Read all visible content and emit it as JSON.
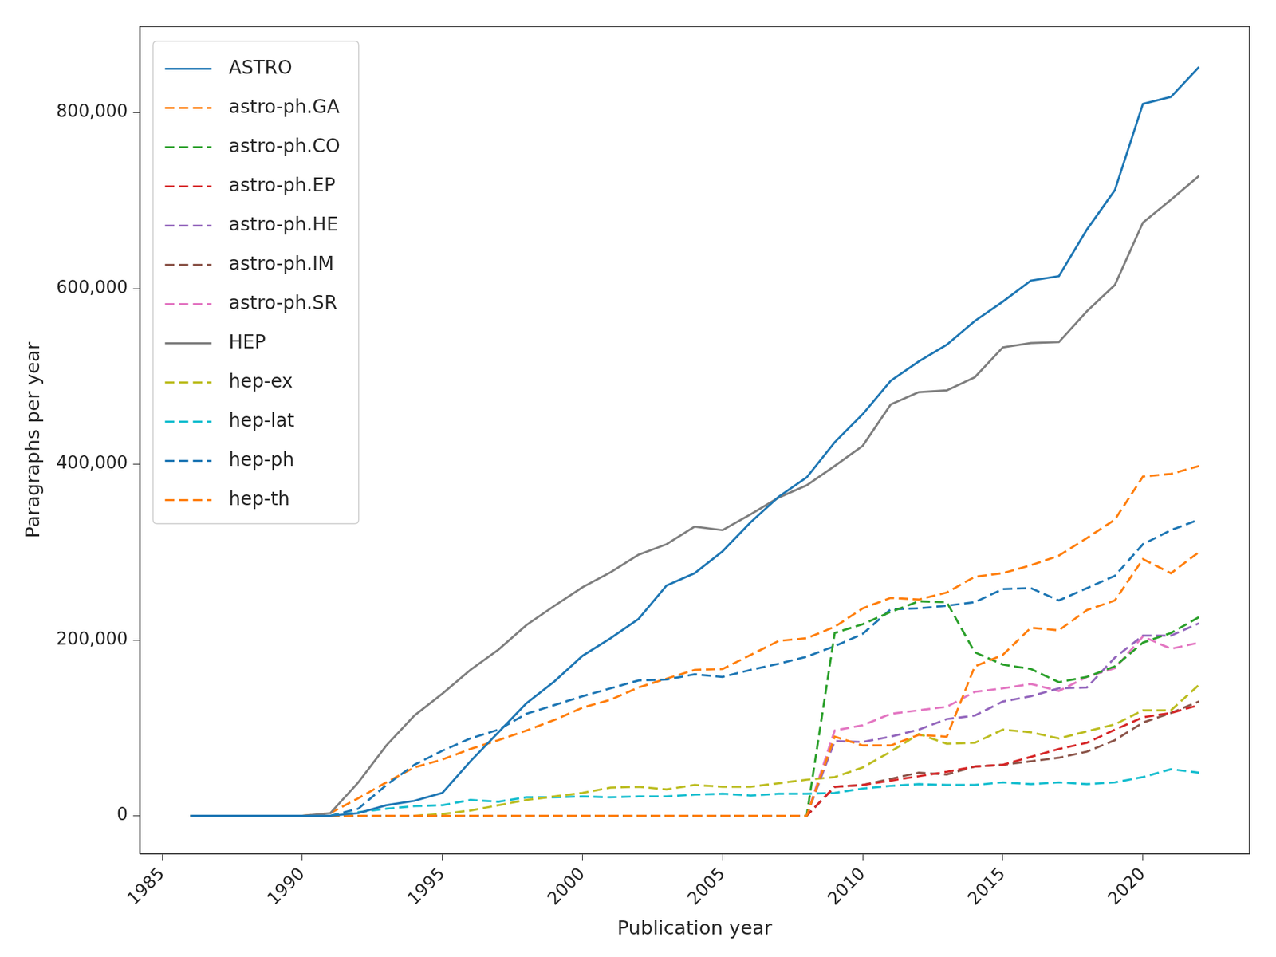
{
  "chart_data": {
    "type": "line",
    "x_label": "Publication year",
    "y_label": "Paragraphs per year",
    "x": [
      1986,
      1987,
      1988,
      1989,
      1990,
      1991,
      1992,
      1993,
      1994,
      1995,
      1996,
      1997,
      1998,
      1999,
      2000,
      2001,
      2002,
      2003,
      2004,
      2005,
      2006,
      2007,
      2008,
      2009,
      2010,
      2011,
      2012,
      2013,
      2014,
      2015,
      2016,
      2017,
      2018,
      2019,
      2020,
      2021,
      2022
    ],
    "xlim": [
      1984.2,
      2023.8
    ],
    "xticks": [
      1985,
      1990,
      1995,
      2000,
      2005,
      2010,
      2015,
      2020
    ],
    "ylim": [
      -43000,
      898000
    ],
    "yticks": [
      0,
      {
        "value": 200000,
        "label": "200,000"
      },
      {
        "value": 400000,
        "label": "400,000"
      },
      {
        "value": 600000,
        "label": "600,000"
      },
      {
        "value": 800000,
        "label": "800,000"
      }
    ],
    "grid": false,
    "legend": "upper left",
    "series": [
      {
        "name": "ASTRO",
        "color": "#1f77b4",
        "line_style": "solid",
        "values": [
          0,
          0,
          0,
          0,
          0,
          0,
          3000,
          12000,
          17000,
          26000,
          62000,
          95000,
          128000,
          153000,
          182000,
          202000,
          224000,
          262000,
          276000,
          301000,
          334000,
          363000,
          385000,
          425000,
          457000,
          495000,
          517000,
          536000,
          563000,
          585000,
          609000,
          614000,
          667000,
          712000,
          810000,
          818000,
          852000
        ]
      },
      {
        "name": "astro-ph.GA",
        "color": "#ff7f0e",
        "line_style": "dashed",
        "values": [
          0,
          0,
          0,
          0,
          0,
          0,
          0,
          0,
          0,
          0,
          0,
          0,
          0,
          0,
          0,
          0,
          0,
          0,
          0,
          0,
          0,
          0,
          0,
          90000,
          80000,
          80000,
          92000,
          90000,
          170000,
          183000,
          214000,
          211000,
          234000,
          245000,
          292000,
          276000,
          300000
        ]
      },
      {
        "name": "astro-ph.CO",
        "color": "#2ca02c",
        "line_style": "dashed",
        "values": [
          0,
          0,
          0,
          0,
          0,
          0,
          0,
          0,
          0,
          0,
          0,
          0,
          0,
          0,
          0,
          0,
          0,
          0,
          0,
          0,
          0,
          0,
          0,
          208000,
          218000,
          232000,
          244000,
          243000,
          186000,
          172000,
          167000,
          152000,
          158000,
          170000,
          197000,
          208000,
          226000
        ]
      },
      {
        "name": "astro-ph.EP",
        "color": "#d62728",
        "line_style": "dashed",
        "values": [
          0,
          0,
          0,
          0,
          0,
          0,
          0,
          0,
          0,
          0,
          0,
          0,
          0,
          0,
          0,
          0,
          0,
          0,
          0,
          0,
          0,
          0,
          0,
          33000,
          35000,
          40000,
          45000,
          50000,
          56000,
          58000,
          67000,
          76000,
          83000,
          98000,
          112000,
          117000,
          126000
        ]
      },
      {
        "name": "astro-ph.HE",
        "color": "#9467bd",
        "line_style": "dashed",
        "values": [
          0,
          0,
          0,
          0,
          0,
          0,
          0,
          0,
          0,
          0,
          0,
          0,
          0,
          0,
          0,
          0,
          0,
          0,
          0,
          0,
          0,
          0,
          0,
          85000,
          84000,
          90000,
          98000,
          110000,
          114000,
          130000,
          136000,
          145000,
          146000,
          180000,
          205000,
          205000,
          219000
        ]
      },
      {
        "name": "astro-ph.IM",
        "color": "#8c564b",
        "line_style": "dashed",
        "values": [
          0,
          0,
          0,
          0,
          0,
          0,
          0,
          0,
          0,
          0,
          0,
          0,
          0,
          0,
          0,
          0,
          0,
          0,
          0,
          0,
          0,
          0,
          0,
          33000,
          35000,
          42000,
          49000,
          47000,
          56000,
          58000,
          62000,
          66000,
          73000,
          86000,
          106000,
          117000,
          130000
        ]
      },
      {
        "name": "astro-ph.SR",
        "color": "#e377c2",
        "line_style": "dashed",
        "values": [
          0,
          0,
          0,
          0,
          0,
          0,
          0,
          0,
          0,
          0,
          0,
          0,
          0,
          0,
          0,
          0,
          0,
          0,
          0,
          0,
          0,
          0,
          0,
          97000,
          103000,
          116000,
          120000,
          124000,
          141000,
          145000,
          150000,
          142000,
          158000,
          168000,
          204000,
          190000,
          197000
        ]
      },
      {
        "name": "HEP",
        "color": "#7f7f7f",
        "line_style": "solid",
        "values": [
          0,
          0,
          0,
          0,
          0,
          3000,
          38000,
          80000,
          114000,
          139000,
          166000,
          189000,
          217000,
          239000,
          260000,
          277000,
          297000,
          309000,
          329000,
          325000,
          343000,
          362000,
          376000,
          398000,
          421000,
          468000,
          482000,
          484000,
          499000,
          533000,
          538000,
          539000,
          574000,
          604000,
          675000,
          701000,
          728000
        ]
      },
      {
        "name": "hep-ex",
        "color": "#bcbd22",
        "line_style": "dashed",
        "values": [
          0,
          0,
          0,
          0,
          0,
          0,
          0,
          0,
          0,
          2000,
          6000,
          12000,
          18000,
          22000,
          26000,
          32000,
          33000,
          30000,
          35000,
          33000,
          33000,
          37000,
          41000,
          44000,
          55000,
          73000,
          93000,
          82000,
          83000,
          98000,
          95000,
          88000,
          96000,
          104000,
          120000,
          120000,
          149000
        ]
      },
      {
        "name": "hep-lat",
        "color": "#17becf",
        "line_style": "dashed",
        "values": [
          0,
          0,
          0,
          0,
          0,
          0,
          4000,
          8000,
          11000,
          12000,
          18000,
          16000,
          21000,
          21000,
          22000,
          21000,
          22000,
          22000,
          24000,
          25000,
          23000,
          25000,
          25000,
          26000,
          31000,
          34000,
          36000,
          35000,
          35000,
          38000,
          36000,
          38000,
          36000,
          38000,
          44000,
          53000,
          49000
        ]
      },
      {
        "name": "hep-ph",
        "color": "#1f77b4",
        "line_style": "dashed",
        "values": [
          0,
          0,
          0,
          0,
          0,
          0,
          8000,
          35000,
          58000,
          74000,
          88000,
          98000,
          116000,
          126000,
          136000,
          145000,
          154000,
          155000,
          161000,
          158000,
          166000,
          173000,
          181000,
          193000,
          207000,
          235000,
          236000,
          239000,
          243000,
          258000,
          259000,
          245000,
          259000,
          273000,
          309000,
          325000,
          337000
        ]
      },
      {
        "name": "hep-th",
        "color": "#ff7f0e",
        "line_style": "dashed",
        "values": [
          0,
          0,
          0,
          0,
          0,
          3000,
          20000,
          38000,
          55000,
          64000,
          76000,
          86000,
          97000,
          109000,
          123000,
          132000,
          146000,
          156000,
          166000,
          167000,
          183000,
          199000,
          202000,
          215000,
          236000,
          248000,
          246000,
          254000,
          272000,
          276000,
          285000,
          296000,
          316000,
          337000,
          386000,
          389000,
          398000
        ]
      }
    ]
  }
}
